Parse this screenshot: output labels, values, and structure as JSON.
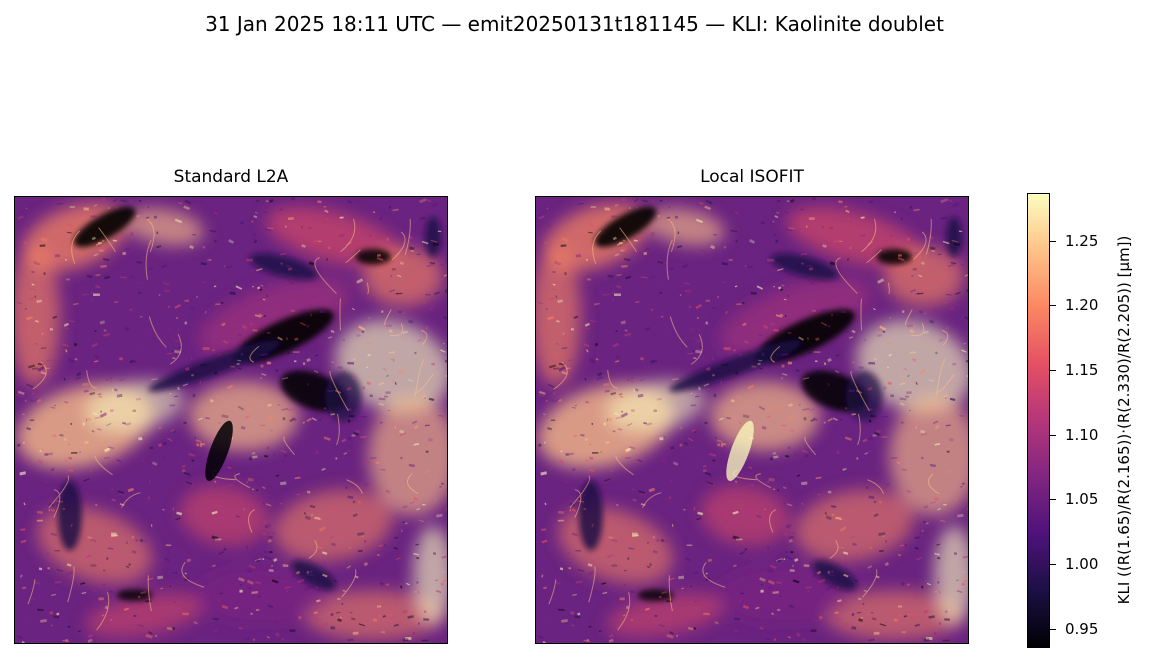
{
  "figure": {
    "suptitle": "31 Jan 2025 18:11 UTC — emit20250131t181145 — KLI: Kaolinite doublet"
  },
  "panels": [
    {
      "title": "Standard L2A"
    },
    {
      "title": "Local ISOFIT"
    }
  ],
  "colorbar": {
    "label": "KLI  ((R(1.65)/R(2.165))·(R(2.330)/R(2.205))  [µm])",
    "colormap": "magma",
    "vmin": 0.935,
    "vmax": 1.287,
    "ticks": [
      "0.95",
      "1.00",
      "1.05",
      "1.10",
      "1.15",
      "1.20",
      "1.25"
    ],
    "colors": [
      "#000004",
      "#1c1044",
      "#4f127b",
      "#812581",
      "#b5367a",
      "#e55064",
      "#fb8761",
      "#fec287",
      "#fcfdbf"
    ]
  }
}
